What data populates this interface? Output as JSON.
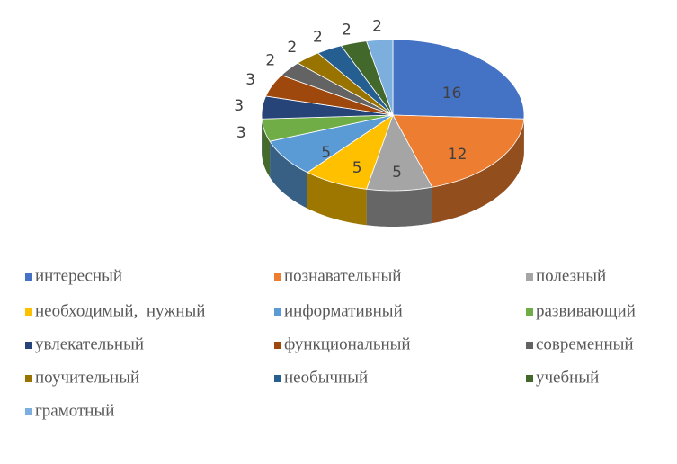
{
  "chart_data": {
    "type": "pie",
    "categories": [
      "интересный",
      "познавательный",
      "полезный",
      "необходимый,  нужный",
      "информативный",
      "развивающий",
      "увлекательный",
      "функциональный",
      "современный",
      "поучительный",
      "необычный",
      "учебный",
      "грамотный"
    ],
    "values": [
      16,
      12,
      5,
      5,
      5,
      3,
      3,
      3,
      2,
      2,
      2,
      2,
      2
    ],
    "colors": [
      "#4472c4",
      "#ed7d31",
      "#a5a5a5",
      "#ffc000",
      "#5b9bd5",
      "#70ad47",
      "#264478",
      "#9e480e",
      "#636363",
      "#997300",
      "#255e91",
      "#43682b",
      "#7cafdd"
    ],
    "legend": "bottom"
  }
}
